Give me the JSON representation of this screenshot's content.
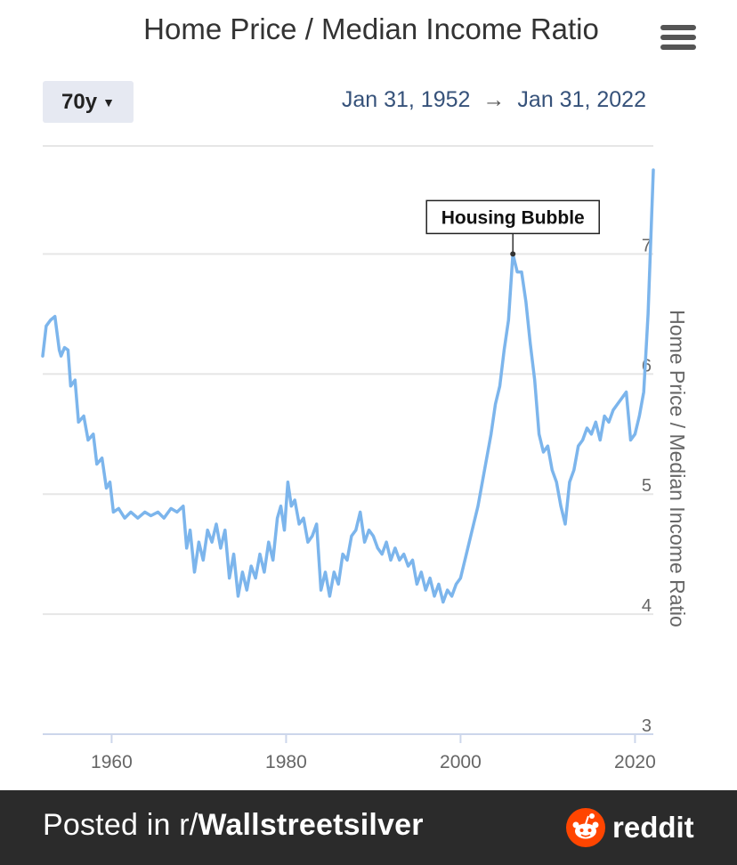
{
  "header": {
    "title": "Home Price / Median Income Ratio",
    "range_label": "70y",
    "date_from": "Jan 31, 1952",
    "date_arrow": "→",
    "date_to": "Jan 31, 2022",
    "menu_icon": "hamburger-menu-icon"
  },
  "footer": {
    "posted_prefix": "Posted in r/",
    "subreddit": "Wallstreetsilver",
    "brand": "reddit",
    "brand_icon": "reddit-alien-icon",
    "background": "#2b2b2b"
  },
  "chart_data": {
    "type": "line",
    "ylabel": "Home Price / Median Income Ratio",
    "xlabel": "",
    "xlim": [
      1952.1,
      2022.1
    ],
    "ylim": [
      3,
      7.9
    ],
    "x_ticks": [
      1960,
      1980,
      2000,
      2020
    ],
    "y_ticks": [
      3,
      4,
      5,
      6,
      7
    ],
    "y_axis_side": "right",
    "grid": true,
    "line_color": "#7cb5ec",
    "annotation": {
      "text": "Housing Bubble",
      "x": 2006,
      "y": 7.0
    },
    "series": [
      {
        "x": [
          1952.1,
          1952.5,
          1953.0,
          1953.5,
          1954.0,
          1954.2,
          1954.6,
          1955.0,
          1955.3,
          1955.8,
          1956.2,
          1956.8,
          1957.3,
          1957.9,
          1958.3,
          1958.9,
          1959.4,
          1959.8,
          1960.2,
          1960.8,
          1961.5,
          1962.2,
          1963.0,
          1963.8,
          1964.5,
          1965.3,
          1966.0,
          1966.8,
          1967.5,
          1968.2,
          1968.6,
          1969.0,
          1969.5,
          1970.0,
          1970.5,
          1971.0,
          1971.5,
          1972.0,
          1972.5,
          1973.0,
          1973.5,
          1974.0,
          1974.5,
          1975.0,
          1975.5,
          1976.0,
          1976.5,
          1977.0,
          1977.5,
          1978.0,
          1978.5,
          1979.0,
          1979.4,
          1979.8,
          1980.2,
          1980.6,
          1981.0,
          1981.5,
          1982.0,
          1982.5,
          1983.0,
          1983.5,
          1984.0,
          1984.5,
          1985.0,
          1985.5,
          1986.0,
          1986.5,
          1987.0,
          1987.5,
          1988.0,
          1988.5,
          1989.0,
          1989.5,
          1990.0,
          1990.5,
          1991.0,
          1991.5,
          1992.0,
          1992.5,
          1993.0,
          1993.5,
          1994.0,
          1994.5,
          1995.0,
          1995.5,
          1996.0,
          1996.5,
          1997.0,
          1997.5,
          1998.0,
          1998.5,
          1999.0,
          1999.5,
          2000.0,
          2000.5,
          2001.0,
          2001.5,
          2002.0,
          2002.5,
          2003.0,
          2003.5,
          2004.0,
          2004.5,
          2005.0,
          2005.5,
          2006.0,
          2006.5,
          2007.0,
          2007.5,
          2008.0,
          2008.5,
          2009.0,
          2009.5,
          2010.0,
          2010.5,
          2011.0,
          2011.5,
          2012.0,
          2012.5,
          2013.0,
          2013.5,
          2014.0,
          2014.5,
          2015.0,
          2015.5,
          2016.0,
          2016.5,
          2017.0,
          2017.5,
          2018.0,
          2018.5,
          2019.0,
          2019.5,
          2020.0,
          2020.5,
          2021.0,
          2021.5,
          2022.1
        ],
        "y": [
          6.15,
          6.4,
          6.45,
          6.48,
          6.2,
          6.15,
          6.22,
          6.2,
          5.9,
          5.95,
          5.6,
          5.65,
          5.45,
          5.5,
          5.25,
          5.3,
          5.05,
          5.1,
          4.85,
          4.88,
          4.8,
          4.85,
          4.8,
          4.85,
          4.82,
          4.85,
          4.8,
          4.88,
          4.85,
          4.9,
          4.55,
          4.7,
          4.35,
          4.6,
          4.45,
          4.7,
          4.6,
          4.75,
          4.55,
          4.7,
          4.3,
          4.5,
          4.15,
          4.35,
          4.2,
          4.4,
          4.3,
          4.5,
          4.35,
          4.6,
          4.45,
          4.8,
          4.9,
          4.7,
          5.1,
          4.9,
          4.95,
          4.75,
          4.8,
          4.6,
          4.65,
          4.75,
          4.2,
          4.35,
          4.15,
          4.35,
          4.25,
          4.5,
          4.45,
          4.65,
          4.7,
          4.85,
          4.6,
          4.7,
          4.65,
          4.55,
          4.5,
          4.6,
          4.45,
          4.55,
          4.45,
          4.5,
          4.4,
          4.45,
          4.25,
          4.35,
          4.2,
          4.3,
          4.15,
          4.25,
          4.1,
          4.2,
          4.15,
          4.25,
          4.3,
          4.45,
          4.6,
          4.75,
          4.9,
          5.1,
          5.3,
          5.5,
          5.75,
          5.9,
          6.2,
          6.45,
          7.0,
          6.85,
          6.85,
          6.6,
          6.25,
          5.95,
          5.5,
          5.35,
          5.4,
          5.2,
          5.1,
          4.9,
          4.75,
          5.1,
          5.2,
          5.4,
          5.45,
          5.55,
          5.5,
          5.6,
          5.45,
          5.65,
          5.6,
          5.7,
          5.75,
          5.8,
          5.85,
          5.45,
          5.5,
          5.65,
          5.85,
          6.5,
          7.7
        ]
      }
    ]
  }
}
